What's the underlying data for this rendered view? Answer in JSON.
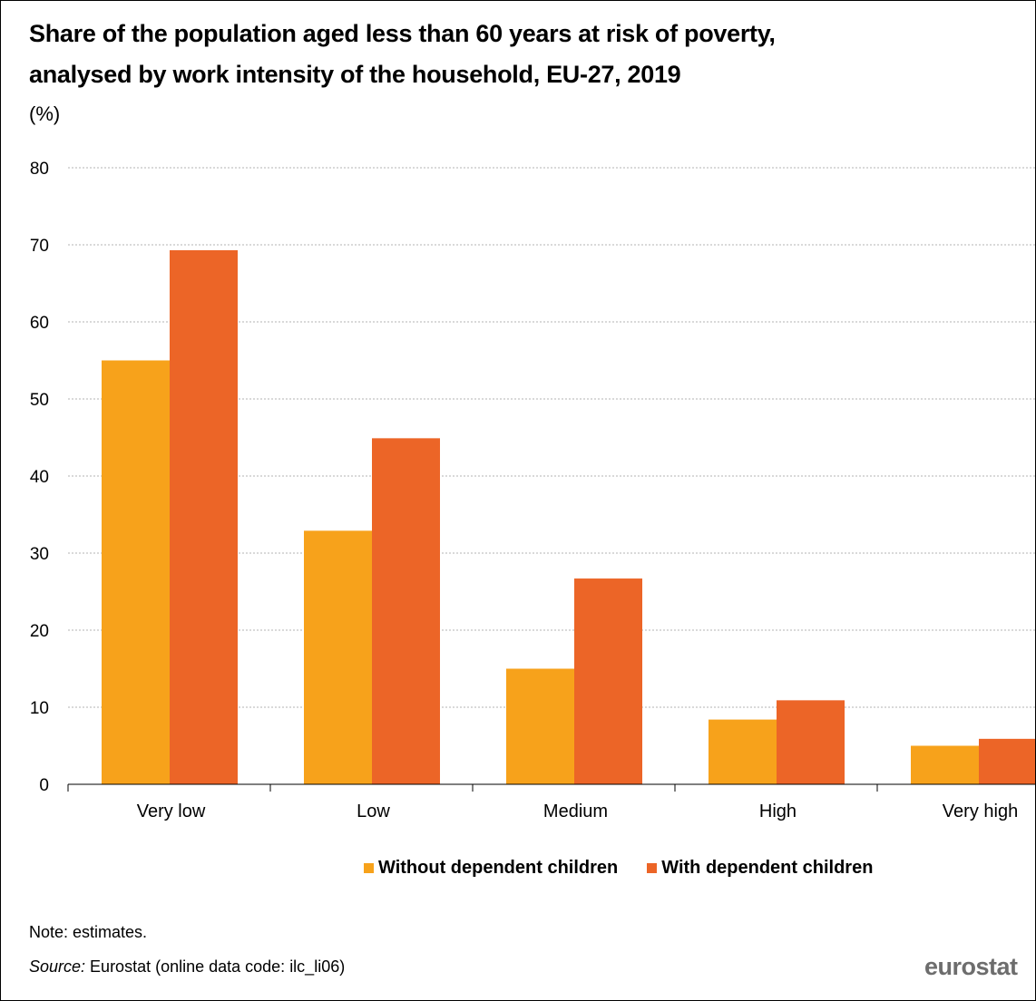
{
  "chart_data": {
    "type": "bar",
    "title": "Share of the population aged less than 60 years at risk of poverty, analysed by work intensity of the household, EU-27, 2019",
    "title_lines": [
      "Share of the population aged less than 60 years at risk of poverty,",
      "analysed by work intensity of the household, EU-27, 2019"
    ],
    "unit": "(%)",
    "xlabel": "",
    "ylabel": "",
    "ylim": [
      0,
      80
    ],
    "yticks": [
      0,
      10,
      20,
      30,
      40,
      50,
      60,
      70,
      80
    ],
    "grid": true,
    "legend_position": "bottom",
    "categories": [
      "Very low",
      "Low",
      "Medium",
      "High",
      "Very high"
    ],
    "series": [
      {
        "name": "Without dependent children",
        "color": "#F7A21B",
        "values": [
          55.0,
          32.9,
          15.0,
          8.4,
          5.0
        ]
      },
      {
        "name": "With dependent children",
        "color": "#EC6527",
        "values": [
          69.3,
          44.9,
          26.7,
          10.9,
          5.9
        ]
      }
    ]
  },
  "note": "Note: estimates.",
  "source": {
    "label": "Source:",
    "text": " Eurostat (online data code: ilc_li06)"
  },
  "logo_text": "eurostat",
  "colors": {
    "grid": "#b3b3b3",
    "axis": "#000000"
  }
}
